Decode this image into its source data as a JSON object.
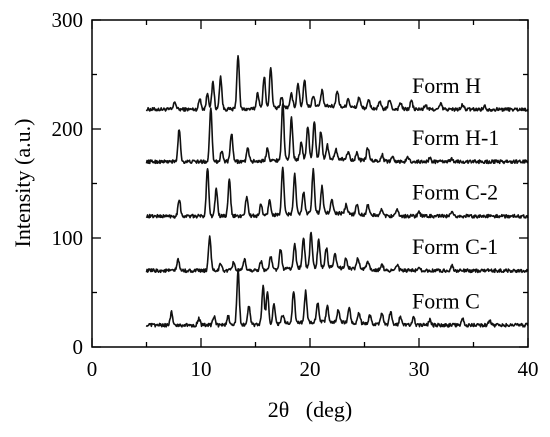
{
  "chart_data": {
    "type": "line",
    "xlabel": "2θ   (deg)",
    "ylabel": "Intensity (a.u.)",
    "xlim": [
      0,
      40
    ],
    "ylim": [
      0,
      300
    ],
    "xticks": [
      0,
      10,
      20,
      30,
      40
    ],
    "yticks": [
      0,
      100,
      200,
      300
    ],
    "grid": false,
    "line_color": "#111111",
    "series": [
      {
        "name": "Form H",
        "baseline": 218,
        "x_range": [
          5,
          40
        ],
        "peaks": [
          [
            7.6,
            7
          ],
          [
            9.9,
            10
          ],
          [
            10.6,
            15
          ],
          [
            11.1,
            25
          ],
          [
            11.8,
            30
          ],
          [
            13.4,
            50
          ],
          [
            15.2,
            15
          ],
          [
            15.8,
            30
          ],
          [
            16.4,
            38
          ],
          [
            17.4,
            10
          ],
          [
            18.3,
            12
          ],
          [
            18.9,
            22
          ],
          [
            19.5,
            25
          ],
          [
            20.3,
            10
          ],
          [
            21.1,
            14
          ],
          [
            22.5,
            15
          ],
          [
            23.5,
            8
          ],
          [
            24.5,
            10
          ],
          [
            25.4,
            7
          ],
          [
            26.4,
            6
          ],
          [
            27.3,
            9
          ],
          [
            28.3,
            6
          ],
          [
            29.3,
            8
          ],
          [
            30.6,
            4
          ],
          [
            32.0,
            5
          ],
          [
            34.0,
            4
          ],
          [
            36.0,
            3
          ]
        ]
      },
      {
        "name": "Form H-1",
        "baseline": 170,
        "x_range": [
          5,
          40
        ],
        "peaks": [
          [
            8.0,
            30
          ],
          [
            10.9,
            50
          ],
          [
            11.9,
            10
          ],
          [
            12.8,
            26
          ],
          [
            14.3,
            12
          ],
          [
            16.1,
            12
          ],
          [
            17.5,
            52
          ],
          [
            18.3,
            38
          ],
          [
            19.2,
            15
          ],
          [
            19.8,
            30
          ],
          [
            20.4,
            34
          ],
          [
            21.0,
            25
          ],
          [
            21.6,
            12
          ],
          [
            22.4,
            8
          ],
          [
            23.5,
            7
          ],
          [
            24.3,
            6
          ],
          [
            25.3,
            12
          ],
          [
            26.6,
            6
          ],
          [
            27.6,
            5
          ],
          [
            29.0,
            4
          ],
          [
            31.0,
            3
          ],
          [
            33.0,
            3
          ]
        ]
      },
      {
        "name": "Form C-2",
        "baseline": 120,
        "x_range": [
          5,
          40
        ],
        "peaks": [
          [
            8.0,
            16
          ],
          [
            10.6,
            45
          ],
          [
            11.4,
            25
          ],
          [
            12.6,
            33
          ],
          [
            14.2,
            18
          ],
          [
            15.5,
            10
          ],
          [
            16.3,
            14
          ],
          [
            17.5,
            42
          ],
          [
            18.6,
            36
          ],
          [
            19.4,
            20
          ],
          [
            20.3,
            40
          ],
          [
            21.1,
            24
          ],
          [
            22.0,
            12
          ],
          [
            23.3,
            8
          ],
          [
            24.3,
            9
          ],
          [
            25.3,
            10
          ],
          [
            26.6,
            6
          ],
          [
            28.0,
            5
          ],
          [
            30.0,
            4
          ],
          [
            33.0,
            3
          ]
        ]
      },
      {
        "name": "Form C-1",
        "baseline": 70,
        "x_range": [
          5,
          40
        ],
        "peaks": [
          [
            7.9,
            10
          ],
          [
            10.8,
            32
          ],
          [
            11.8,
            6
          ],
          [
            13.0,
            8
          ],
          [
            14.0,
            10
          ],
          [
            15.5,
            8
          ],
          [
            16.4,
            12
          ],
          [
            17.3,
            18
          ],
          [
            18.6,
            22
          ],
          [
            19.4,
            28
          ],
          [
            20.1,
            32
          ],
          [
            20.8,
            25
          ],
          [
            21.5,
            18
          ],
          [
            22.3,
            12
          ],
          [
            23.3,
            9
          ],
          [
            24.4,
            10
          ],
          [
            25.3,
            8
          ],
          [
            26.6,
            6
          ],
          [
            28.0,
            5
          ],
          [
            30.0,
            4
          ],
          [
            33.0,
            5
          ]
        ]
      },
      {
        "name": "Form C",
        "baseline": 20,
        "x_range": [
          5,
          40
        ],
        "peaks": [
          [
            7.3,
            12
          ],
          [
            9.8,
            6
          ],
          [
            11.2,
            8
          ],
          [
            12.5,
            8
          ],
          [
            13.4,
            50
          ],
          [
            14.4,
            18
          ],
          [
            15.7,
            35
          ],
          [
            16.1,
            30
          ],
          [
            16.7,
            18
          ],
          [
            17.5,
            8
          ],
          [
            18.5,
            30
          ],
          [
            19.6,
            28
          ],
          [
            20.7,
            18
          ],
          [
            21.6,
            14
          ],
          [
            22.6,
            12
          ],
          [
            23.6,
            14
          ],
          [
            24.5,
            10
          ],
          [
            25.5,
            8
          ],
          [
            26.6,
            10
          ],
          [
            27.4,
            12
          ],
          [
            28.3,
            8
          ],
          [
            29.5,
            7
          ],
          [
            31.0,
            5
          ],
          [
            34.0,
            6
          ],
          [
            36.5,
            4
          ]
        ]
      }
    ]
  }
}
